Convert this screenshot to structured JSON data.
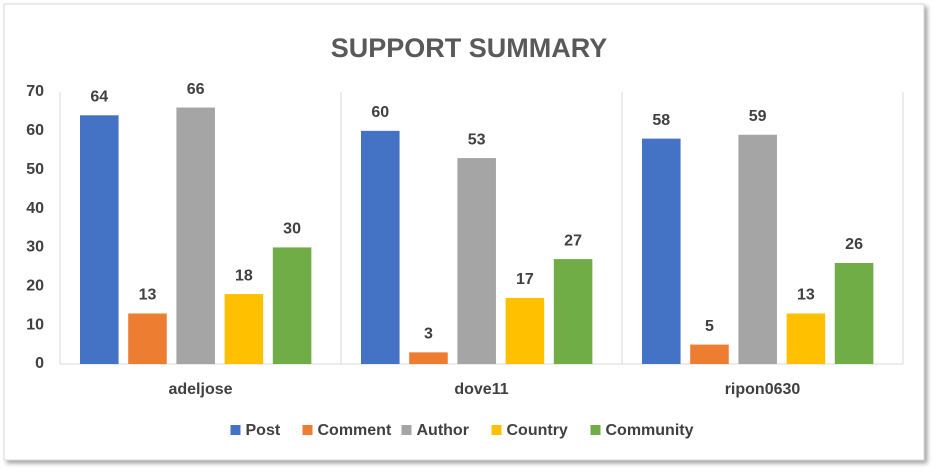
{
  "chart_data": {
    "type": "bar",
    "title": "SUPPORT SUMMARY",
    "categories": [
      "adeljose",
      "dove11",
      "ripon0630"
    ],
    "series": [
      {
        "name": "Post",
        "color": "#4472c4",
        "values": [
          64,
          60,
          58
        ]
      },
      {
        "name": "Comment",
        "color": "#ed7d31",
        "values": [
          13,
          3,
          5
        ]
      },
      {
        "name": "Author",
        "color": "#a5a5a5",
        "values": [
          66,
          53,
          59
        ]
      },
      {
        "name": "Country",
        "color": "#ffc000",
        "values": [
          18,
          17,
          13
        ]
      },
      {
        "name": "Community",
        "color": "#70ad47",
        "values": [
          30,
          27,
          26
        ]
      }
    ],
    "ylim": [
      0,
      70
    ],
    "yticks": [
      0,
      10,
      20,
      30,
      40,
      50,
      60,
      70
    ],
    "legend": "bottom"
  }
}
